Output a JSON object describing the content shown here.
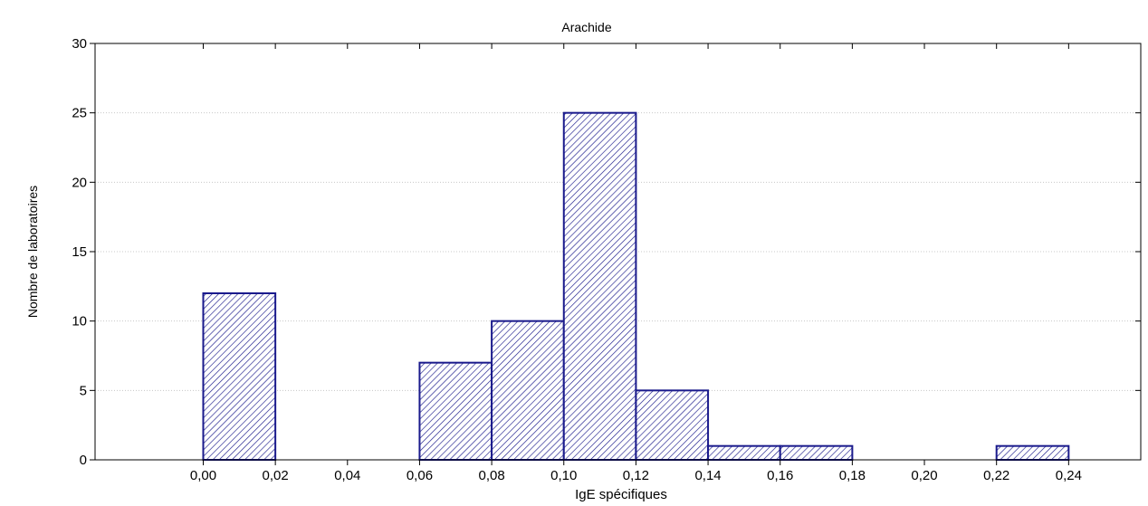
{
  "chart_data": {
    "type": "bar",
    "title": "Arachide",
    "xlabel": "IgE spécifiques",
    "ylabel": "Nombre de laboratoires",
    "bins": [
      {
        "start": 0.0,
        "end": 0.02,
        "value": 12
      },
      {
        "start": 0.06,
        "end": 0.08,
        "value": 7
      },
      {
        "start": 0.08,
        "end": 0.1,
        "value": 10
      },
      {
        "start": 0.1,
        "end": 0.12,
        "value": 25
      },
      {
        "start": 0.12,
        "end": 0.14,
        "value": 5
      },
      {
        "start": 0.14,
        "end": 0.16,
        "value": 1
      },
      {
        "start": 0.16,
        "end": 0.18,
        "value": 1
      },
      {
        "start": 0.22,
        "end": 0.24,
        "value": 1
      }
    ],
    "xlim": [
      -0.03,
      0.26
    ],
    "ylim": [
      0,
      30
    ],
    "x_ticks": [
      0.0,
      0.02,
      0.04,
      0.06,
      0.08,
      0.1,
      0.12,
      0.14,
      0.16,
      0.18,
      0.2,
      0.22,
      0.24
    ],
    "x_tick_labels": [
      "0,00",
      "0,02",
      "0,04",
      "0,06",
      "0,08",
      "0,10",
      "0,12",
      "0,14",
      "0,16",
      "0,18",
      "0,20",
      "0,22",
      "0,24"
    ],
    "y_ticks": [
      0,
      5,
      10,
      15,
      20,
      25,
      30
    ],
    "y_tick_labels": [
      "0",
      "5",
      "10",
      "15",
      "20",
      "25",
      "30"
    ],
    "grid": true,
    "legend": "none",
    "colors": {
      "bar_stroke": "#1a1a8c",
      "bar_hatch": "#1a1a8c",
      "bar_fill": "#ffffff",
      "grid": "#c8c8c8",
      "axis": "#000000"
    }
  }
}
